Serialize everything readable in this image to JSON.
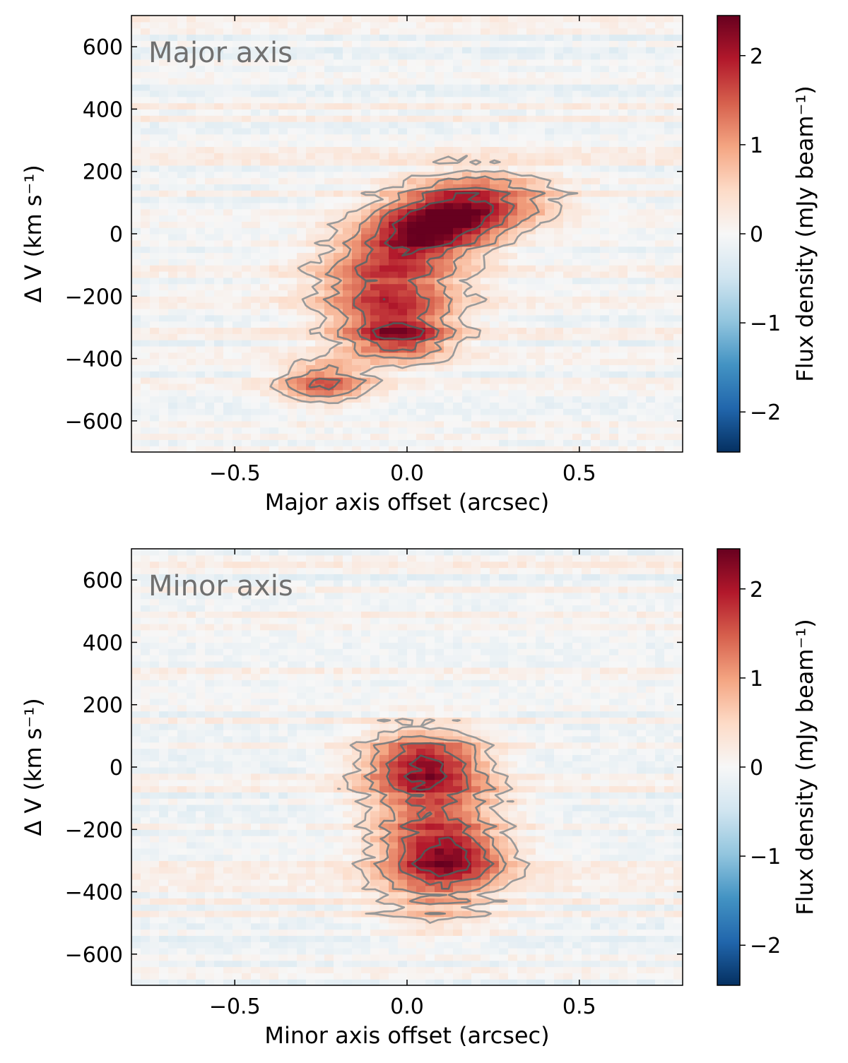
{
  "chart_data": [
    {
      "type": "heatmap",
      "panel_label": "Major axis",
      "xlabel": "Major axis offset (arcsec)",
      "ylabel": "Δ V (km s⁻¹)",
      "xlim": [
        -0.8,
        0.8
      ],
      "ylim": [
        -700,
        700
      ],
      "xticks": [
        -0.5,
        0.0,
        0.5
      ],
      "xtick_labels": [
        "−0.5",
        "0.0",
        "0.5"
      ],
      "yticks": [
        -600,
        -400,
        -200,
        0,
        200,
        400,
        600
      ],
      "ytick_labels": [
        "−600",
        "−400",
        "−200",
        "0",
        "200",
        "400",
        "600"
      ],
      "colorbar": {
        "label": "Flux density (mJy beam⁻¹)",
        "range": [
          -2.45,
          2.45
        ],
        "ticks": [
          -2,
          -1,
          0,
          1,
          2
        ],
        "tick_labels": [
          "−2",
          "−1",
          "0",
          "1",
          "2"
        ],
        "colormap": "RdBu_r"
      },
      "emission_components": [
        {
          "x": 0.08,
          "v": 20,
          "sx": 0.14,
          "sv": 70,
          "amp": 2.4,
          "tilt": 110
        },
        {
          "x": 0.2,
          "v": 120,
          "sx": 0.16,
          "sv": 60,
          "amp": 1.2,
          "tilt": 0
        },
        {
          "x": -0.05,
          "v": -190,
          "sx": 0.14,
          "sv": 110,
          "amp": 1.7,
          "tilt": 0
        },
        {
          "x": -0.02,
          "v": -330,
          "sx": 0.1,
          "sv": 50,
          "amp": 1.4,
          "tilt": 0
        },
        {
          "x": -0.24,
          "v": -480,
          "sx": 0.09,
          "sv": 45,
          "amp": 1.5,
          "tilt": 0
        }
      ],
      "contour_levels": [
        0.45,
        0.9,
        1.45,
        2.0
      ]
    },
    {
      "type": "heatmap",
      "panel_label": "Minor axis",
      "xlabel": "Minor axis offset (arcsec)",
      "ylabel": "Δ V (km s⁻¹)",
      "xlim": [
        -0.8,
        0.8
      ],
      "ylim": [
        -700,
        700
      ],
      "xticks": [
        -0.5,
        0.0,
        0.5
      ],
      "xtick_labels": [
        "−0.5",
        "0.0",
        "0.5"
      ],
      "yticks": [
        -600,
        -400,
        -200,
        0,
        200,
        400,
        600
      ],
      "ytick_labels": [
        "−600",
        "−400",
        "−200",
        "0",
        "200",
        "400",
        "600"
      ],
      "colorbar": {
        "label": "Flux density (mJy beam⁻¹)",
        "range": [
          -2.45,
          2.45
        ],
        "ticks": [
          -2,
          -1,
          0,
          1,
          2
        ],
        "tick_labels": [
          "−2",
          "−1",
          "0",
          "1",
          "2"
        ],
        "colormap": "RdBu_r"
      },
      "emission_components": [
        {
          "x": 0.05,
          "v": 15,
          "sx": 0.12,
          "sv": 70,
          "amp": 2.0,
          "tilt": 0
        },
        {
          "x": 0.08,
          "v": -170,
          "sx": 0.13,
          "sv": 100,
          "amp": 1.5,
          "tilt": 0
        },
        {
          "x": 0.12,
          "v": -300,
          "sx": 0.12,
          "sv": 60,
          "amp": 1.5,
          "tilt": 0
        },
        {
          "x": 0.08,
          "v": -430,
          "sx": 0.12,
          "sv": 80,
          "amp": 0.7,
          "tilt": 0
        }
      ],
      "contour_levels": [
        0.45,
        0.9,
        1.45,
        2.0
      ]
    }
  ]
}
